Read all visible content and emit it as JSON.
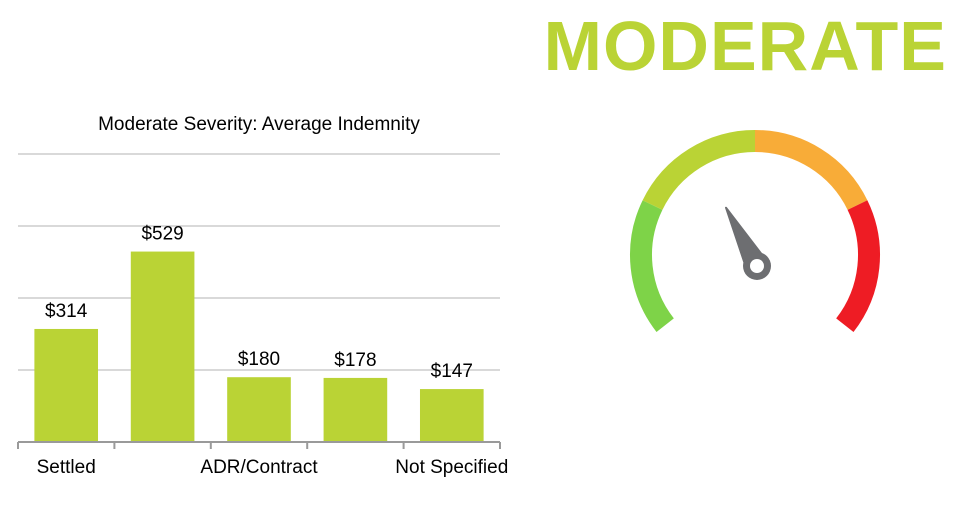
{
  "headline": "MODERATE",
  "colors": {
    "headline": "#bad335",
    "bar": "#bad335",
    "grid": "#d9d9d9",
    "axis": "#9a9a9a",
    "gauge_segments": [
      "#7ed348",
      "#bad335",
      "#f8ac38",
      "#ee1c24"
    ],
    "needle": "#6d6e71"
  },
  "gauge": {
    "icon": "speedometer-icon",
    "segments": 4,
    "needle_angle_deg": -28
  },
  "chart_data": {
    "type": "bar",
    "title": "Moderate Severity: Average Indemnity",
    "categories": [
      "Settled",
      "",
      "ADR/Contract",
      "",
      "Not Specified"
    ],
    "values": [
      314,
      529,
      180,
      178,
      147
    ],
    "data_labels": [
      "$314",
      "$529",
      "$180",
      "$178",
      "$147"
    ],
    "xlabel": "",
    "ylabel": "",
    "ylim": [
      0,
      800
    ],
    "grid": true,
    "legend": "none"
  }
}
